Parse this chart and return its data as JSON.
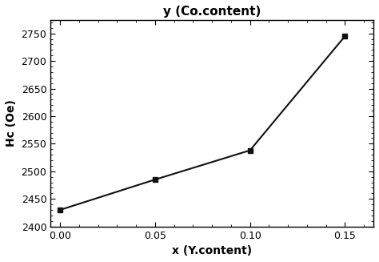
{
  "x": [
    0.0,
    0.05,
    0.1,
    0.15
  ],
  "y": [
    2430,
    2485,
    2538,
    2745
  ],
  "xlabel": "x (Y.content)",
  "ylabel": "Hc (Oe)",
  "title": "y (Co.content)",
  "xlim": [
    -0.005,
    0.165
  ],
  "ylim": [
    2400,
    2775
  ],
  "xticks": [
    0.0,
    0.05,
    0.1,
    0.15
  ],
  "yticks": [
    2400,
    2450,
    2500,
    2550,
    2600,
    2650,
    2700,
    2750
  ],
  "line_color": "#111111",
  "marker": "s",
  "marker_size": 5,
  "marker_color": "#111111",
  "linewidth": 1.5,
  "title_fontsize": 11,
  "label_fontsize": 10,
  "tick_fontsize": 9,
  "figure_facecolor": "#ffffff",
  "axes_facecolor": "#ffffff"
}
